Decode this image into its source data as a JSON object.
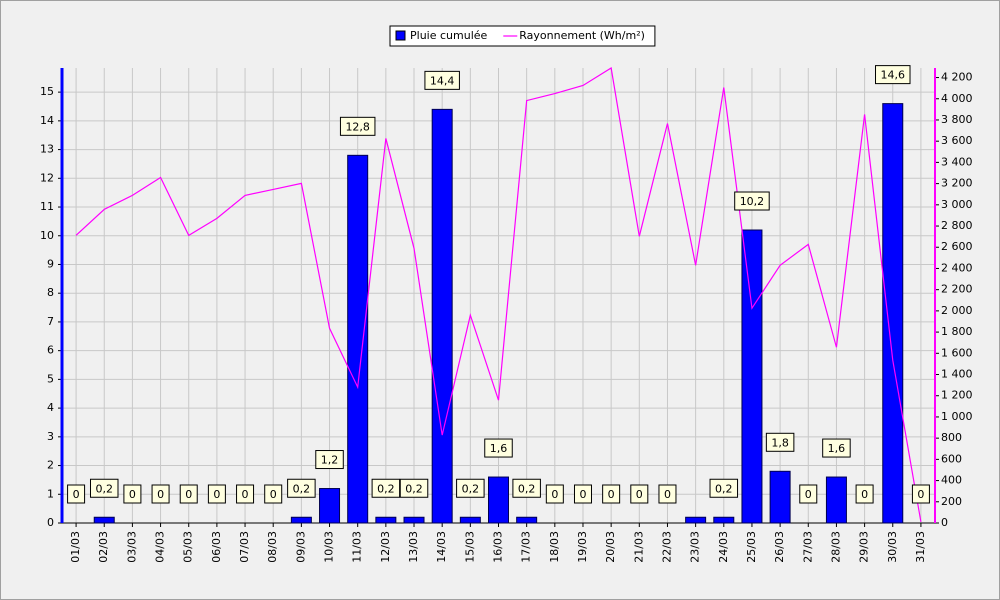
{
  "chart_data": {
    "type": "bar",
    "categories": [
      "01/03",
      "02/03",
      "03/03",
      "04/03",
      "05/03",
      "06/03",
      "07/03",
      "08/03",
      "09/03",
      "10/03",
      "11/03",
      "12/03",
      "13/03",
      "14/03",
      "15/03",
      "16/03",
      "17/03",
      "18/03",
      "19/03",
      "20/03",
      "21/03",
      "22/03",
      "23/03",
      "24/03",
      "25/03",
      "26/03",
      "27/03",
      "28/03",
      "29/03",
      "30/03",
      "31/03"
    ],
    "series": [
      {
        "name": "Pluie cumulée",
        "type": "bar",
        "color": "#0000ff",
        "values": [
          0,
          0.2,
          0,
          0,
          0,
          0,
          0,
          0,
          0.2,
          1.2,
          12.8,
          0.2,
          0.2,
          14.4,
          0.2,
          1.6,
          0.2,
          0,
          0,
          0,
          0,
          0,
          0.2,
          0.2,
          10.2,
          1.8,
          0,
          1.6,
          0,
          14.6,
          0
        ],
        "value_labels": [
          "0",
          "0,2",
          "0",
          "0",
          "0",
          "0",
          "0",
          "0",
          "0,2",
          "1,2",
          "12,8",
          "0,2",
          "0,2",
          "14,4",
          "0,2",
          "1,6",
          "0,2",
          "0",
          "0",
          "0",
          "0",
          "0",
          null,
          "0,2",
          "10,2",
          "1,8",
          "0",
          "1,6",
          "0",
          "14,6",
          "0"
        ]
      },
      {
        "name": "Rayonnement (Wh/m²)",
        "type": "line",
        "axis": "y2",
        "color": "#ff00ff",
        "values": [
          2712,
          2957,
          3089,
          3258,
          2712,
          2872,
          3089,
          3145,
          3202,
          1836,
          1281,
          3626,
          2590,
          829,
          1959,
          1158,
          3983,
          4049,
          4125,
          4290,
          2703,
          3767,
          2430,
          4106,
          2025,
          2430,
          2627,
          1657,
          3852,
          1535,
          10
        ]
      }
    ],
    "ylim": [
      0,
      15.84
    ],
    "yticks": [
      0,
      1,
      2,
      3,
      4,
      5,
      6,
      7,
      8,
      9,
      10,
      11,
      12,
      13,
      14,
      15
    ],
    "y2lim": [
      0,
      4290
    ],
    "y2ticks": [
      0,
      200,
      400,
      600,
      800,
      {
        "value": 1000,
        "label": "1 000"
      },
      {
        "value": 1200,
        "label": "1 200"
      },
      {
        "value": 1400,
        "label": "1 400"
      },
      {
        "value": 1600,
        "label": "1 600"
      },
      {
        "value": 1800,
        "label": "1 800"
      },
      {
        "value": 2000,
        "label": "2 000"
      },
      {
        "value": 2200,
        "label": "2 200"
      },
      {
        "value": 2400,
        "label": "2 400"
      },
      {
        "value": 2600,
        "label": "2 600"
      },
      {
        "value": 2800,
        "label": "2 800"
      },
      {
        "value": 3000,
        "label": "3 000"
      },
      {
        "value": 3200,
        "label": "3 200"
      },
      {
        "value": 3400,
        "label": "3 400"
      },
      {
        "value": 3600,
        "label": "3 600"
      },
      {
        "value": 3800,
        "label": "3 800"
      },
      {
        "value": 4000,
        "label": "4 000"
      },
      {
        "value": 4200,
        "label": "4 200"
      }
    ],
    "grid": true,
    "legend": "top"
  }
}
